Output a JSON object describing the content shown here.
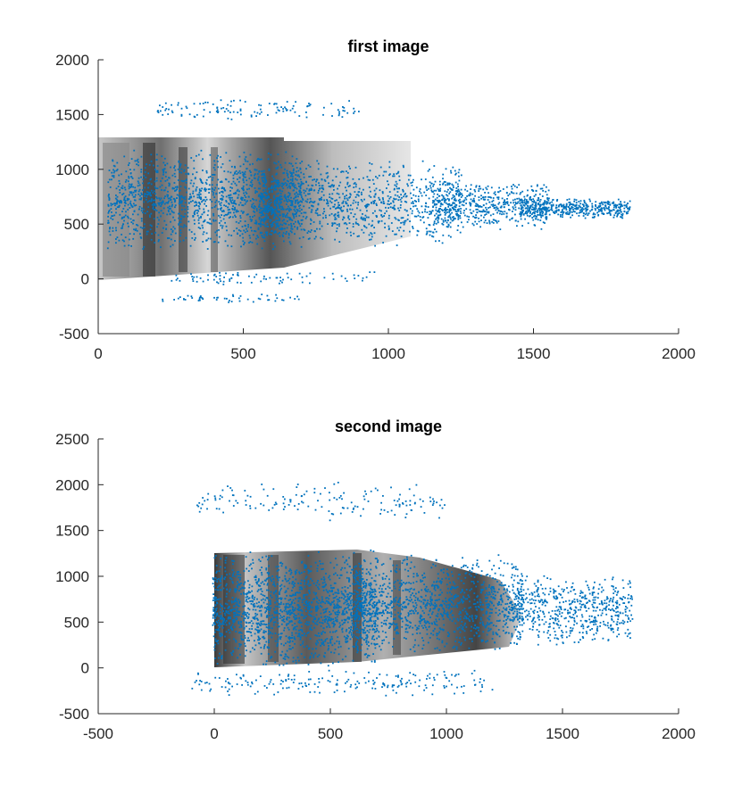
{
  "chart_data": [
    {
      "type": "scatter",
      "title": "first image",
      "xlim": [
        0,
        2000
      ],
      "ylim": [
        -500,
        2000
      ],
      "x_ticks": [
        0,
        500,
        1000,
        1500,
        2000
      ],
      "y_ticks": [
        -500,
        0,
        500,
        1000,
        1500,
        2000
      ],
      "grid": false,
      "background_image": "grayscale-building-photo",
      "point_color": "#0072BD",
      "image_extent": {
        "x": [
          0,
          460
        ],
        "y": [
          0,
          1300
        ]
      },
      "clusters": [
        {
          "x": [
            30,
            700
          ],
          "y": [
            250,
            1200
          ],
          "n": 1400
        },
        {
          "x": [
            550,
            1250
          ],
          "y": [
            300,
            1100
          ],
          "n": 1000
        },
        {
          "x": [
            1150,
            1550
          ],
          "y": [
            450,
            900
          ],
          "n": 500
        },
        {
          "x": [
            1450,
            1830
          ],
          "y": [
            550,
            750
          ],
          "n": 450
        },
        {
          "x": [
            200,
            900
          ],
          "y": [
            1450,
            1650
          ],
          "n": 120
        },
        {
          "x": [
            200,
            700
          ],
          "y": [
            -230,
            -120
          ],
          "n": 50
        },
        {
          "x": [
            250,
            950
          ],
          "y": [
            -50,
            80
          ],
          "n": 80
        }
      ]
    },
    {
      "type": "scatter",
      "title": "second image",
      "xlim": [
        -500,
        2000
      ],
      "ylim": [
        -500,
        2500
      ],
      "x_ticks": [
        -500,
        0,
        500,
        1000,
        1500,
        2000
      ],
      "y_ticks": [
        -500,
        0,
        500,
        1000,
        1500,
        2000,
        2500
      ],
      "grid": false,
      "background_image": "grayscale-building-photo-transformed",
      "point_color": "#0072BD",
      "image_extent": {
        "x": [
          0,
          1330
        ],
        "y": [
          -30,
          1280
        ]
      },
      "clusters": [
        {
          "x": [
            -10,
            700
          ],
          "y": [
            0,
            1300
          ],
          "n": 1700
        },
        {
          "x": [
            600,
            1330
          ],
          "y": [
            150,
            1250
          ],
          "n": 1200
        },
        {
          "x": [
            1300,
            1800
          ],
          "y": [
            250,
            1050
          ],
          "n": 550
        },
        {
          "x": [
            -80,
            1000
          ],
          "y": [
            1600,
            2050
          ],
          "n": 160
        },
        {
          "x": [
            -100,
            1200
          ],
          "y": [
            -300,
            0
          ],
          "n": 200
        }
      ]
    }
  ]
}
